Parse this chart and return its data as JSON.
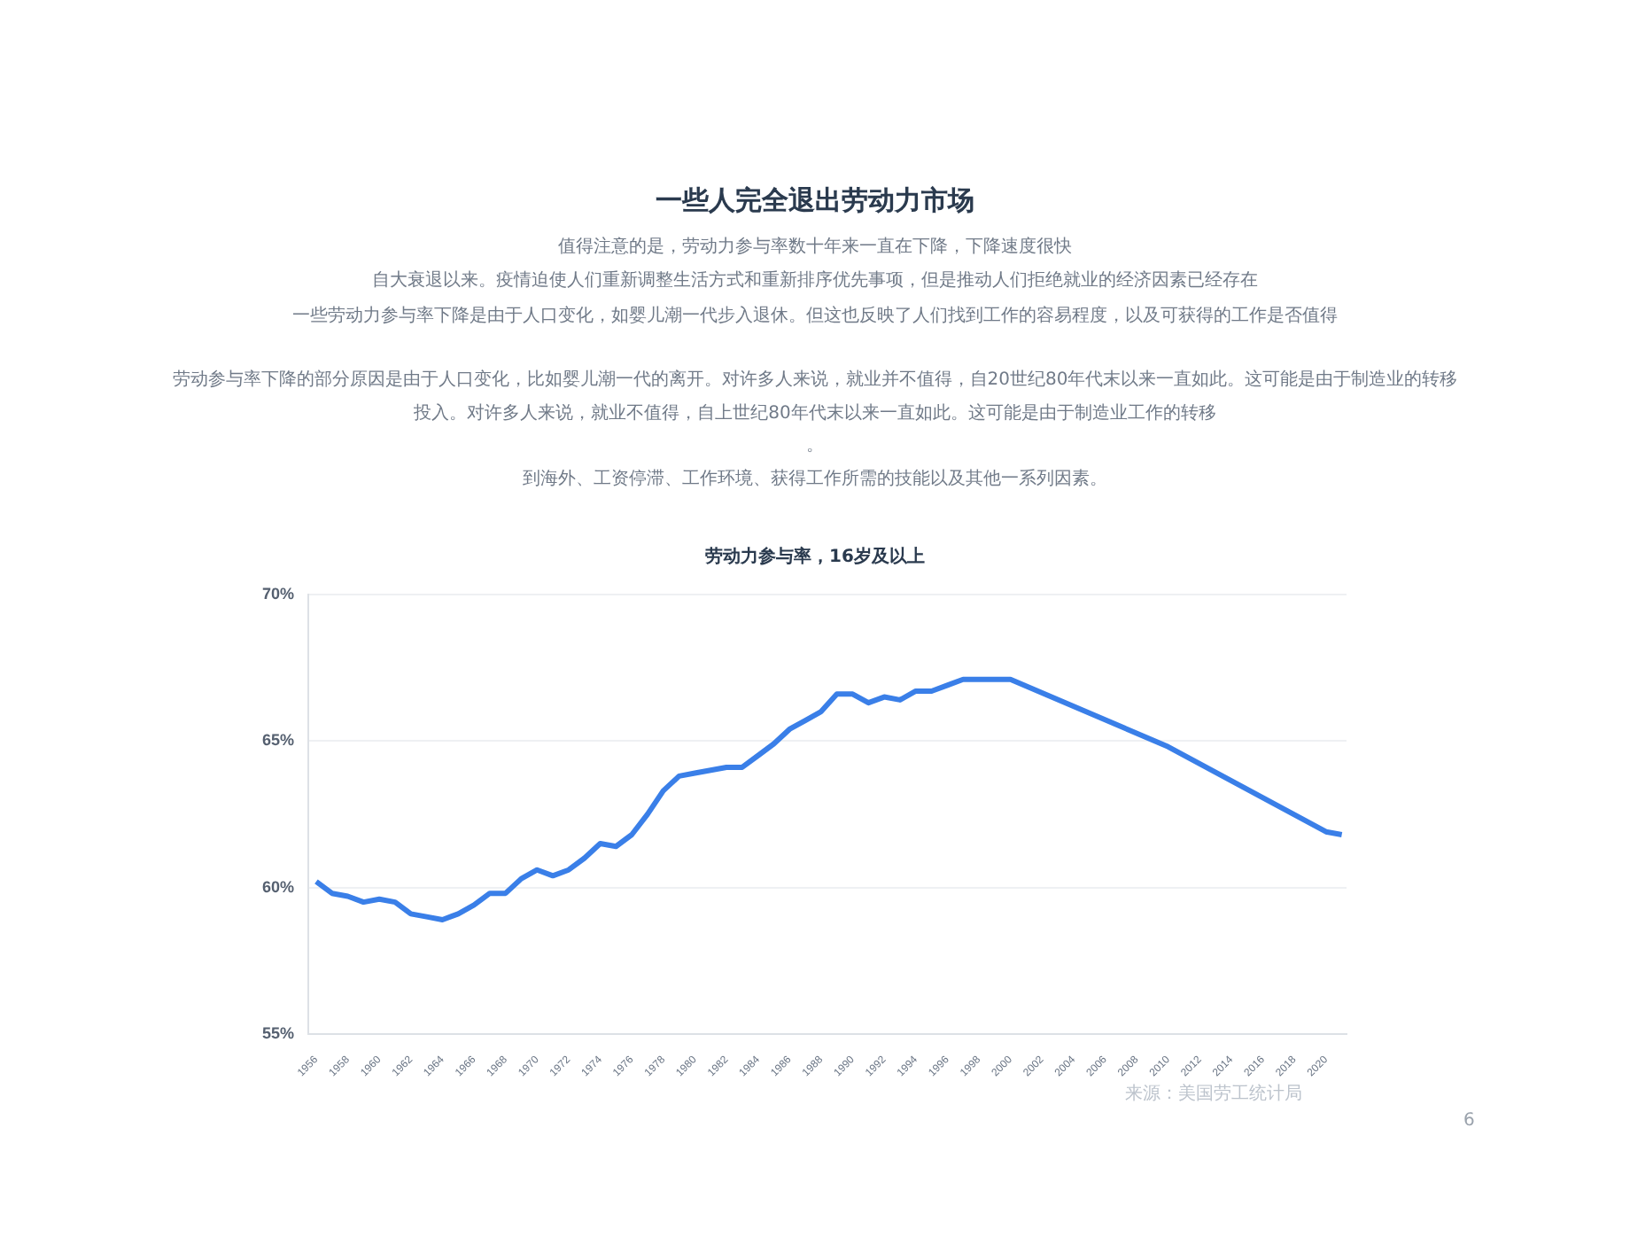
{
  "chart_data": {
    "type": "line",
    "title": "一些人完全退出劳动力市场",
    "annotations": [
      "值得注意的是，劳动力参与率数十年来一直在下降，下降速度很快",
      "自大衰退以来。疫情迫使人们重新调整生活方式和重新排序优先事项，但是推动人们拒绝就业的经济因素已经存在",
      "一些劳动力参与率下降是由于人口变化，如婴儿潮一代步入退休。但这也反映了人们找到工作的容易程度，以及可获得的工作是否值得",
      "劳动参与率下降的部分原因是由于人口变化，比如婴儿潮一代的离开。对许多人来说，就业并不值得，自20世纪80年代末以来一直如此。这可能是由于制造业的转移",
      "投入。对许多人来说，就业不值得，自上世纪80年代末以来一直如此。这可能是由于制造业工作的转移",
      "。",
      "到海外、工资停滞、工作环境、获得工作所需的技能以及其他一系列因素。",
      "劳动力参与率，16岁及以上",
      "来源：美国劳工统计局",
      "6"
    ],
    "x": [
      1956,
      1957,
      1958,
      1959,
      1960,
      1961,
      1962,
      1963,
      1964,
      1965,
      1966,
      1967,
      1968,
      1969,
      1970,
      1971,
      1972,
      1973,
      1974,
      1975,
      1976,
      1977,
      1978,
      1979,
      1980,
      1981,
      1982,
      1983,
      1984,
      1985,
      1986,
      1987,
      1988,
      1989,
      1990,
      1991,
      1992,
      1993,
      1994,
      1995,
      1996,
      1997,
      1998,
      1999,
      2000,
      2010,
      2020,
      2021
    ],
    "values": [
      60.2,
      59.8,
      59.7,
      59.5,
      59.6,
      59.5,
      59.1,
      59.0,
      58.9,
      59.1,
      59.4,
      59.8,
      59.8,
      60.3,
      60.6,
      60.4,
      60.6,
      61.0,
      61.5,
      61.4,
      61.8,
      62.5,
      63.3,
      63.8,
      63.9,
      64.0,
      64.1,
      64.1,
      64.5,
      64.9,
      65.4,
      65.7,
      66.0,
      66.6,
      66.6,
      66.3,
      66.5,
      66.4,
      66.7,
      66.7,
      66.9,
      67.1,
      67.1,
      67.1,
      67.1,
      64.8,
      61.9,
      61.8
    ],
    "color": "#3a7fe8",
    "xlim": [
      1955.5,
      2021.3
    ],
    "xticks": [
      1956,
      1958,
      1960,
      1962,
      1964,
      1966,
      1968,
      1970,
      1972,
      1974,
      1976,
      1978,
      1980,
      1982,
      1984,
      1986,
      1988,
      1990,
      1992,
      1994,
      1996,
      1998,
      2000,
      2002,
      2004,
      2006,
      2008,
      2010,
      2012,
      2014,
      2016,
      2018,
      2020
    ],
    "ylim": [
      55,
      70
    ],
    "yticks": [
      {
        "value": 55,
        "label": "55%"
      },
      {
        "value": 60,
        "label": "60%"
      },
      {
        "value": 65,
        "label": "65%"
      },
      {
        "value": 70,
        "label": "70%"
      }
    ],
    "grid": "y",
    "marker": "none",
    "line_style": "solid"
  }
}
